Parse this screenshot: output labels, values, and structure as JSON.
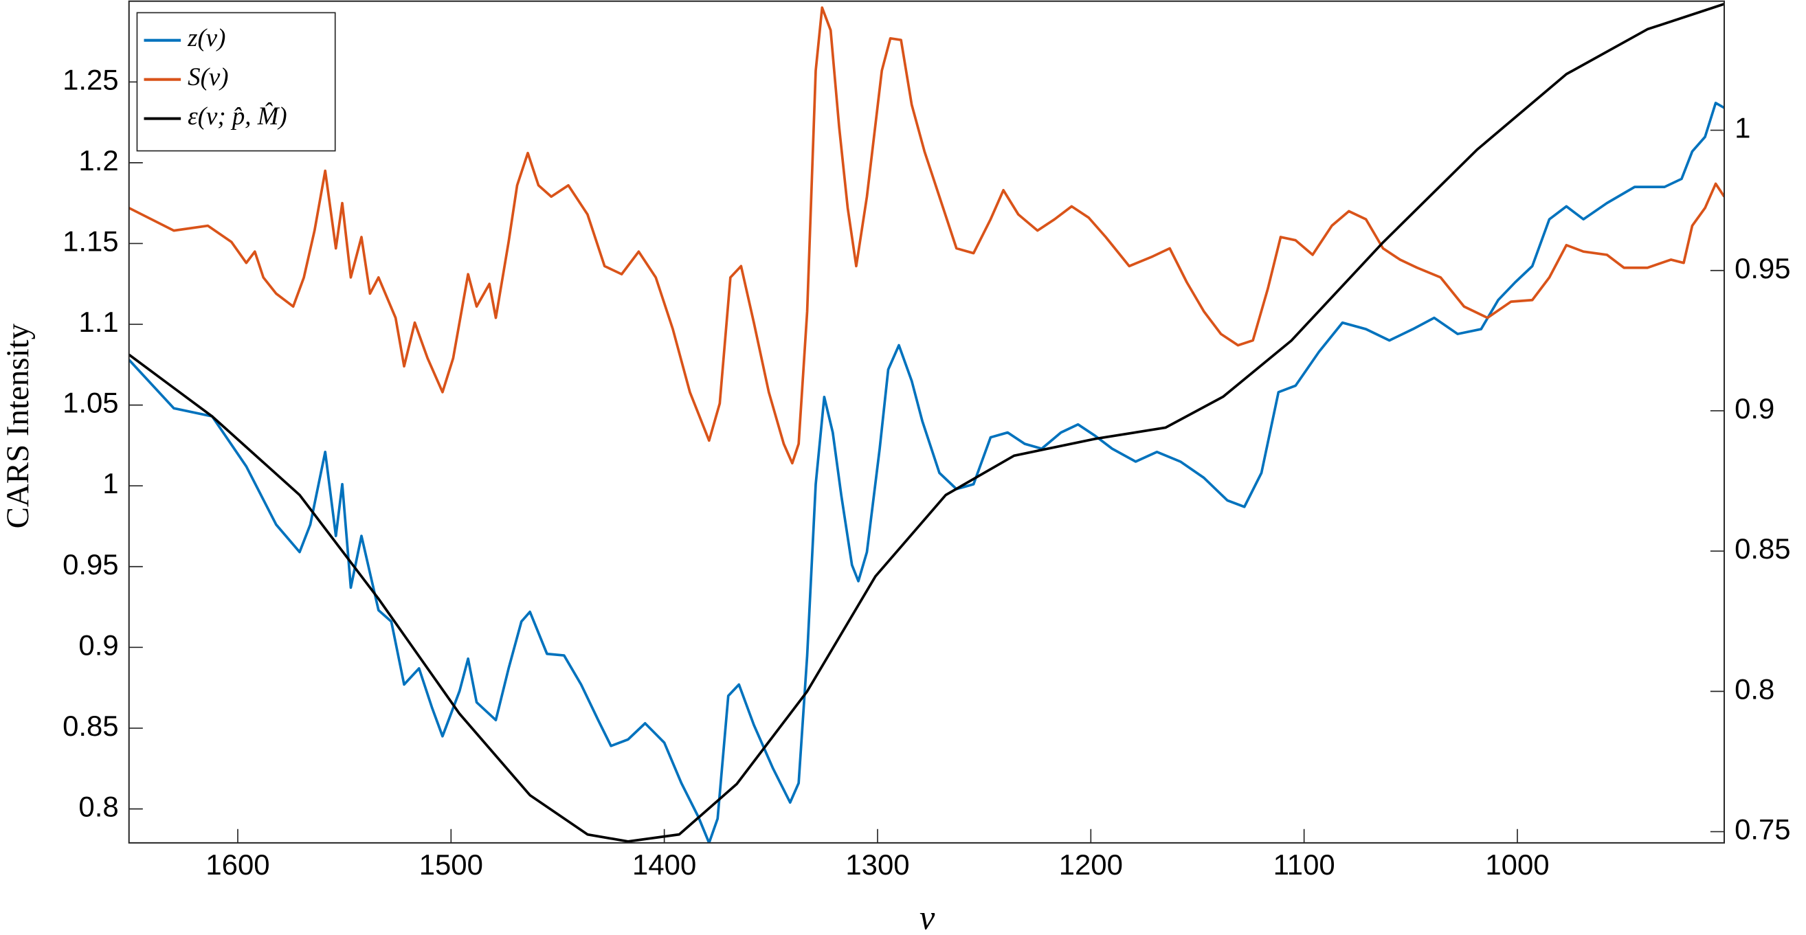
{
  "chart_data": {
    "type": "line",
    "xlabel": "ν",
    "ylabel": "CARS Intensity",
    "xlim": [
      1651,
      903
    ],
    "ylim": [
      0.779,
      1.3
    ],
    "y2lim": [
      0.746,
      1.046
    ],
    "xticks": [
      1600,
      1500,
      1400,
      1300,
      1200,
      1100,
      1000
    ],
    "yticks": [
      0.8,
      0.85,
      0.9,
      0.95,
      1,
      1.05,
      1.1,
      1.15,
      1.2,
      1.25
    ],
    "y2ticks": [
      0.75,
      0.8,
      0.85,
      0.9,
      0.95,
      1
    ],
    "legend": "upper left",
    "series": [
      {
        "name": "z(ν)",
        "color": "#0072bd",
        "x": [
          1651,
          1630,
          1612,
          1596,
          1582,
          1571,
          1566,
          1559,
          1554,
          1551,
          1547,
          1542,
          1534,
          1528,
          1522,
          1515,
          1509,
          1504,
          1496,
          1492,
          1488,
          1479,
          1473,
          1467,
          1463,
          1455,
          1447,
          1439,
          1431,
          1425,
          1417,
          1409,
          1400,
          1392,
          1384,
          1379,
          1375,
          1370,
          1365,
          1358,
          1349,
          1341,
          1337,
          1333,
          1329,
          1325,
          1321,
          1317,
          1312,
          1309,
          1305,
          1299,
          1295,
          1290,
          1284,
          1279,
          1271,
          1263,
          1255,
          1247,
          1239,
          1231,
          1223,
          1214,
          1206,
          1198,
          1190,
          1179,
          1169,
          1158,
          1147,
          1136,
          1128,
          1120,
          1112,
          1104,
          1093,
          1082,
          1071,
          1060,
          1049,
          1039,
          1028,
          1017,
          1009,
          1001,
          993,
          985,
          977,
          969,
          958,
          945,
          931,
          923,
          918,
          912,
          907,
          903
        ],
        "values": [
          1.078,
          1.048,
          1.043,
          1.012,
          0.976,
          0.959,
          0.976,
          1.021,
          0.969,
          1.001,
          0.937,
          0.969,
          0.923,
          0.916,
          0.877,
          0.887,
          0.863,
          0.845,
          0.873,
          0.893,
          0.866,
          0.855,
          0.887,
          0.916,
          0.922,
          0.896,
          0.895,
          0.877,
          0.855,
          0.839,
          0.843,
          0.853,
          0.841,
          0.816,
          0.795,
          0.779,
          0.794,
          0.87,
          0.877,
          0.852,
          0.825,
          0.804,
          0.816,
          0.895,
          1.001,
          1.055,
          1.033,
          0.994,
          0.951,
          0.941,
          0.959,
          1.023,
          1.072,
          1.087,
          1.065,
          1.04,
          1.008,
          0.998,
          1.001,
          1.03,
          1.033,
          1.026,
          1.023,
          1.033,
          1.038,
          1.031,
          1.023,
          1.015,
          1.021,
          1.015,
          1.005,
          0.991,
          0.987,
          1.008,
          1.058,
          1.062,
          1.083,
          1.101,
          1.097,
          1.09,
          1.097,
          1.104,
          1.094,
          1.097,
          1.115,
          1.126,
          1.136,
          1.165,
          1.173,
          1.165,
          1.175,
          1.185,
          1.185,
          1.19,
          1.207,
          1.216,
          1.237,
          1.234
        ]
      },
      {
        "name": "S(ν)",
        "color": "#d95319",
        "x": [
          1651,
          1630,
          1614,
          1603,
          1596,
          1592,
          1588,
          1582,
          1574,
          1569,
          1564,
          1559,
          1554,
          1551,
          1547,
          1542,
          1538,
          1534,
          1526,
          1522,
          1517,
          1511,
          1504,
          1499,
          1492,
          1488,
          1482,
          1479,
          1473,
          1469,
          1464,
          1459,
          1453,
          1445,
          1436,
          1428,
          1420,
          1412,
          1404,
          1396,
          1388,
          1379,
          1374,
          1369,
          1364,
          1358,
          1351,
          1344,
          1340,
          1337,
          1333,
          1329,
          1326,
          1322,
          1318,
          1314,
          1310,
          1305,
          1298,
          1294,
          1289,
          1284,
          1278,
          1271,
          1263,
          1255,
          1247,
          1241,
          1234,
          1225,
          1217,
          1209,
          1201,
          1193,
          1182,
          1171,
          1163,
          1155,
          1147,
          1139,
          1131,
          1124,
          1117,
          1111,
          1104,
          1096,
          1087,
          1079,
          1071,
          1063,
          1055,
          1047,
          1036,
          1025,
          1014,
          1003,
          993,
          985,
          977,
          969,
          958,
          950,
          939,
          928,
          922,
          918,
          912,
          907,
          903
        ],
        "values": [
          1.172,
          1.158,
          1.161,
          1.151,
          1.138,
          1.145,
          1.129,
          1.119,
          1.111,
          1.129,
          1.158,
          1.195,
          1.147,
          1.175,
          1.129,
          1.154,
          1.119,
          1.129,
          1.104,
          1.074,
          1.101,
          1.079,
          1.058,
          1.079,
          1.131,
          1.111,
          1.125,
          1.104,
          1.151,
          1.186,
          1.206,
          1.186,
          1.179,
          1.186,
          1.168,
          1.136,
          1.131,
          1.145,
          1.129,
          1.097,
          1.058,
          1.028,
          1.051,
          1.129,
          1.136,
          1.101,
          1.058,
          1.026,
          1.014,
          1.026,
          1.108,
          1.257,
          1.296,
          1.282,
          1.222,
          1.172,
          1.136,
          1.179,
          1.257,
          1.277,
          1.276,
          1.236,
          1.207,
          1.179,
          1.147,
          1.144,
          1.165,
          1.183,
          1.168,
          1.158,
          1.165,
          1.173,
          1.166,
          1.154,
          1.136,
          1.142,
          1.147,
          1.126,
          1.108,
          1.094,
          1.087,
          1.09,
          1.122,
          1.154,
          1.152,
          1.143,
          1.161,
          1.17,
          1.165,
          1.147,
          1.14,
          1.135,
          1.129,
          1.111,
          1.104,
          1.114,
          1.115,
          1.129,
          1.149,
          1.145,
          1.143,
          1.135,
          1.135,
          1.14,
          1.138,
          1.161,
          1.172,
          1.187,
          1.179
        ]
      },
      {
        "name": "ε(ν; p̂, M̂)",
        "color": "#000000",
        "axis": "y2",
        "x": [
          1651,
          1612,
          1571,
          1534,
          1496,
          1463,
          1436,
          1417,
          1393,
          1366,
          1333,
          1301,
          1268,
          1236,
          1198,
          1165,
          1138,
          1106,
          1063,
          1019,
          977,
          939,
          903
        ],
        "values": [
          0.92,
          0.898,
          0.87,
          0.833,
          0.792,
          0.763,
          0.749,
          0.7465,
          0.749,
          0.767,
          0.8,
          0.841,
          0.87,
          0.884,
          0.89,
          0.894,
          0.905,
          0.925,
          0.96,
          0.993,
          1.02,
          1.036,
          1.045
        ]
      }
    ]
  }
}
